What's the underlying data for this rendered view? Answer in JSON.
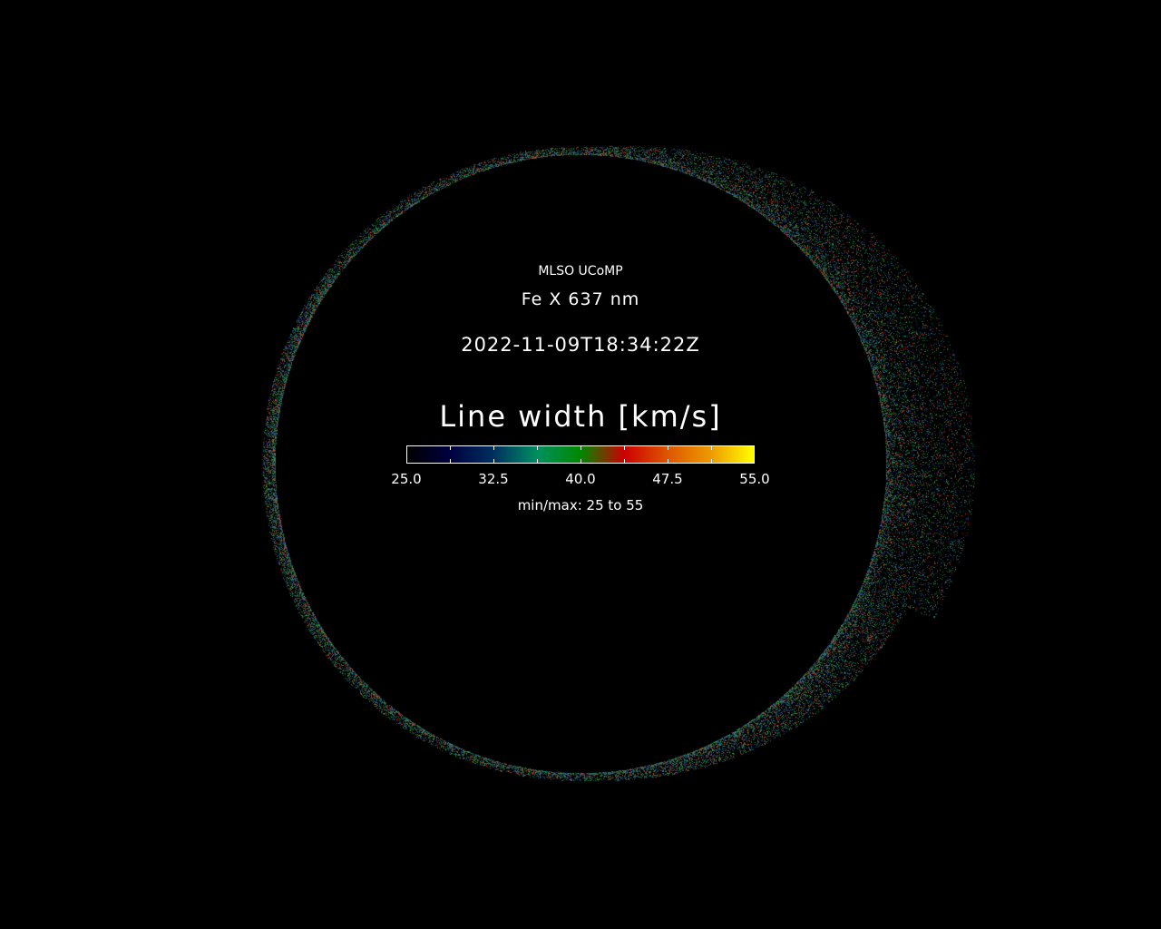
{
  "annotation": {
    "observatory": "MLSO UCoMP",
    "line": "Fe X 637 nm",
    "datetime": "2022-11-09T18:34:22Z"
  },
  "colorbar": {
    "title": "Line width [km/s]",
    "range": [
      25.0,
      55.0
    ],
    "tick_labels": [
      "25.0",
      "32.5",
      "40.0",
      "47.5",
      "55.0"
    ],
    "colormap": [
      "#000000",
      "#000040",
      "#003060",
      "#009060",
      "#008800",
      "#cc0000",
      "#dd5500",
      "#ee9900",
      "#ffff00"
    ],
    "minmax_text": "min/max: 25 to 55"
  },
  "background_color": "#000000"
}
